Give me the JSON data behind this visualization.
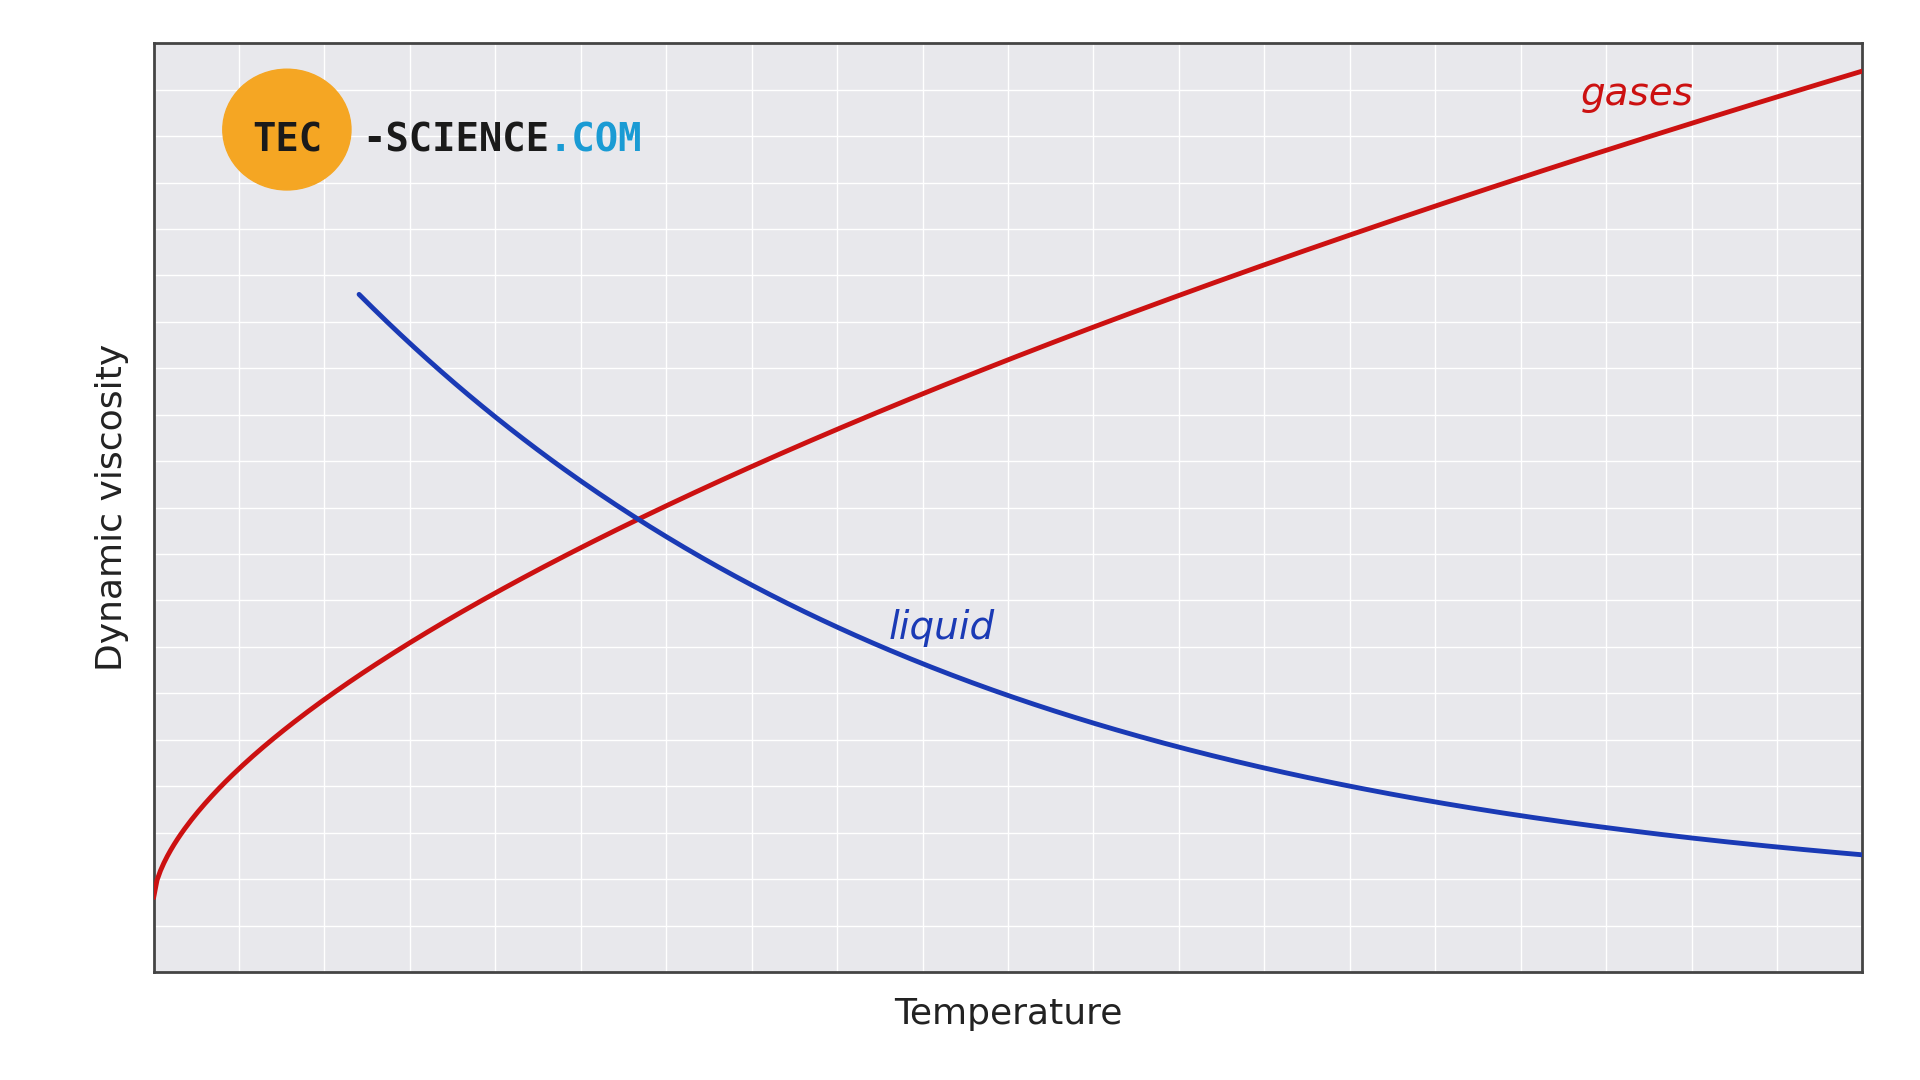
{
  "title": "",
  "xlabel": "Temperature",
  "ylabel": "Dynamic viscosity",
  "xlabel_fontsize": 26,
  "ylabel_fontsize": 26,
  "background_color": "#ffffff",
  "plot_bg_color": "#e8e8ec",
  "outer_bg_color": "#ffffff",
  "grid_color": "#ffffff",
  "grid_linewidth": 1.0,
  "axis_linewidth": 2.0,
  "gas_color": "#cc1111",
  "liquid_color": "#1a3ab5",
  "gas_label": "gases",
  "liquid_label": "liquid",
  "label_fontsize": 28,
  "line_linewidth": 3.5,
  "xlim": [
    0,
    1
  ],
  "ylim": [
    0,
    1
  ],
  "logo_circle_color": "#f5a623",
  "logo_tec_color": "#1a1a1a",
  "logo_science_color": "#1a1a1a",
  "logo_com_color": "#1a9bd4",
  "logo_fontsize": 28,
  "n_grid_lines": 20
}
